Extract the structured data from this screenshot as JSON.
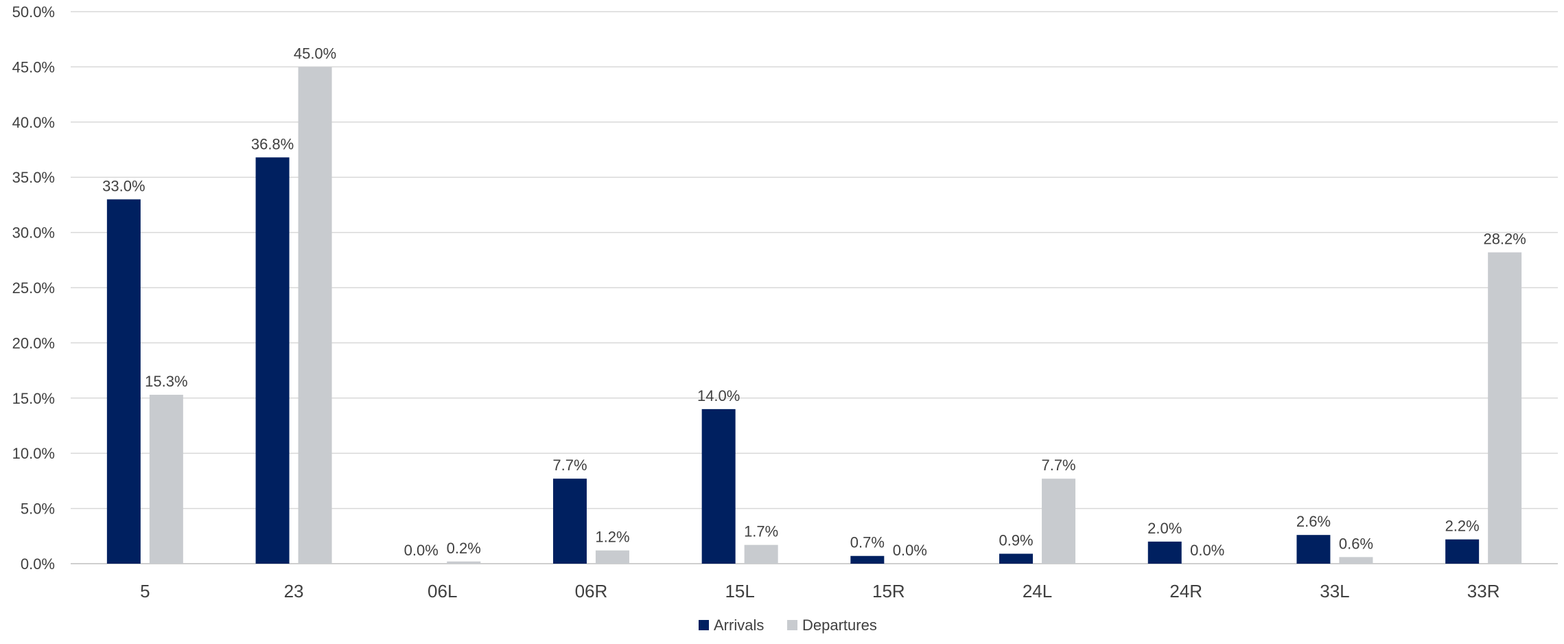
{
  "chart_data": {
    "type": "bar",
    "categories": [
      "5",
      "23",
      "06L",
      "06R",
      "15L",
      "15R",
      "24L",
      "24R",
      "33L",
      "33R"
    ],
    "series": [
      {
        "name": "Arrivals",
        "color": "#002060",
        "values": [
          33.0,
          36.8,
          0.0,
          7.7,
          14.0,
          0.7,
          0.9,
          2.0,
          2.6,
          2.2
        ],
        "labels": [
          "33.0%",
          "36.8%",
          "0.0%",
          "7.7%",
          "14.0%",
          "0.7%",
          "0.9%",
          "2.0%",
          "2.6%",
          "2.2%"
        ]
      },
      {
        "name": "Departures",
        "color": "#c8cbcf",
        "values": [
          15.3,
          45.0,
          0.2,
          1.2,
          1.7,
          0.0,
          7.7,
          0.0,
          0.6,
          28.2
        ],
        "labels": [
          "15.3%",
          "45.0%",
          "0.2%",
          "1.2%",
          "1.7%",
          "0.0%",
          "7.7%",
          "0.0%",
          "0.6%",
          "28.2%"
        ]
      }
    ],
    "ylim": [
      0,
      50
    ],
    "ytick_values": [
      0,
      5,
      10,
      15,
      20,
      25,
      30,
      35,
      40,
      45,
      50
    ],
    "ytick_labels": [
      "0.0%",
      "5.0%",
      "10.0%",
      "15.0%",
      "20.0%",
      "25.0%",
      "30.0%",
      "35.0%",
      "40.0%",
      "45.0%",
      "50.0%"
    ],
    "grid": true,
    "legend_position": "bottom-center",
    "title": "",
    "xlabel": "",
    "ylabel": ""
  }
}
